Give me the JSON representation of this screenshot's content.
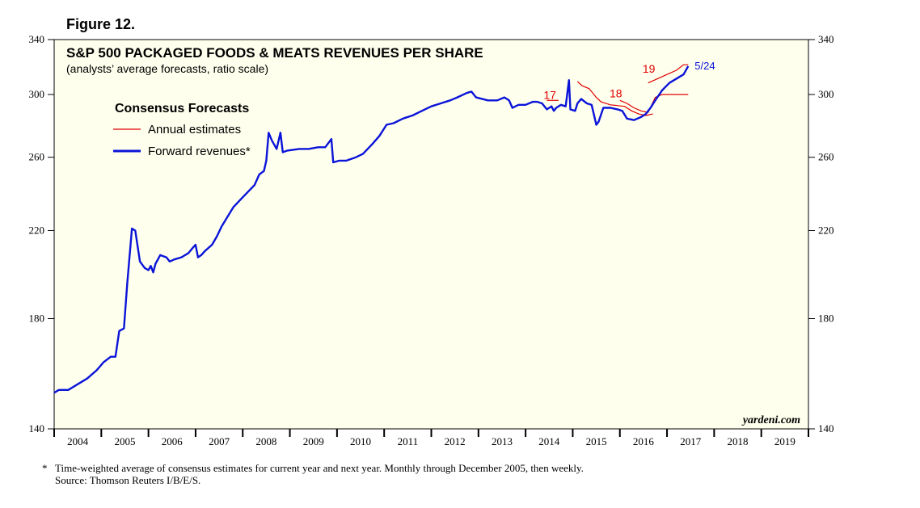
{
  "figure_label": "Figure 12.",
  "footnote": {
    "marker": "*",
    "line1": "Time-weighted average of consensus estimates for current year and next year. Monthly through December 2005, then weekly.",
    "line2": "Source: Thomson Reuters I/B/E/S."
  },
  "chart_data": {
    "type": "line",
    "title": "S&P 500 PACKAGED FOODS & MEATS REVENUES PER SHARE",
    "subtitle": "(analysts’ average forecasts, ratio scale)",
    "legend_title": "Consensus Forecasts",
    "watermark": "yardeni.com",
    "end_label": "5/24",
    "colors": {
      "forward": "#0a14d8",
      "annual": "#e00000",
      "plot_bg": "#ffffee"
    },
    "xlim": [
      2004.0,
      2020.0
    ],
    "ylim": [
      140,
      340
    ],
    "yscale": "log",
    "y_ticks": [
      140,
      180,
      220,
      260,
      300,
      340
    ],
    "x_tick_labels": [
      "2004",
      "2005",
      "2006",
      "2007",
      "2008",
      "2009",
      "2010",
      "2011",
      "2012",
      "2013",
      "2014",
      "2015",
      "2016",
      "2017",
      "2018",
      "2019"
    ],
    "series": [
      {
        "name": "Forward revenues*",
        "color": "#0a14d8",
        "points": [
          [
            2004.0,
            152
          ],
          [
            2004.1,
            153
          ],
          [
            2004.3,
            153
          ],
          [
            2004.5,
            155
          ],
          [
            2004.7,
            157
          ],
          [
            2004.9,
            160
          ],
          [
            2005.05,
            163
          ],
          [
            2005.2,
            165
          ],
          [
            2005.3,
            165
          ],
          [
            2005.38,
            175
          ],
          [
            2005.48,
            176
          ],
          [
            2005.55,
            195
          ],
          [
            2005.65,
            221
          ],
          [
            2005.72,
            220
          ],
          [
            2005.82,
            205
          ],
          [
            2005.92,
            202
          ],
          [
            2006.0,
            201
          ],
          [
            2006.05,
            203
          ],
          [
            2006.1,
            200
          ],
          [
            2006.15,
            204
          ],
          [
            2006.25,
            208
          ],
          [
            2006.38,
            207
          ],
          [
            2006.45,
            205
          ],
          [
            2006.55,
            206
          ],
          [
            2006.7,
            207
          ],
          [
            2006.85,
            209
          ],
          [
            2006.92,
            211
          ],
          [
            2007.0,
            213
          ],
          [
            2007.05,
            207
          ],
          [
            2007.12,
            208
          ],
          [
            2007.2,
            210
          ],
          [
            2007.35,
            213
          ],
          [
            2007.45,
            217
          ],
          [
            2007.55,
            222
          ],
          [
            2007.7,
            228
          ],
          [
            2007.8,
            232
          ],
          [
            2007.95,
            236
          ],
          [
            2008.1,
            240
          ],
          [
            2008.25,
            244
          ],
          [
            2008.35,
            250
          ],
          [
            2008.45,
            252
          ],
          [
            2008.5,
            258
          ],
          [
            2008.55,
            275
          ],
          [
            2008.62,
            270
          ],
          [
            2008.72,
            265
          ],
          [
            2008.8,
            275
          ],
          [
            2008.85,
            263
          ],
          [
            2008.95,
            264
          ],
          [
            2009.2,
            265
          ],
          [
            2009.4,
            265
          ],
          [
            2009.6,
            266
          ],
          [
            2009.75,
            266
          ],
          [
            2009.88,
            271
          ],
          [
            2009.92,
            257
          ],
          [
            2010.05,
            258
          ],
          [
            2010.2,
            258
          ],
          [
            2010.4,
            260
          ],
          [
            2010.55,
            262
          ],
          [
            2010.75,
            268
          ],
          [
            2010.9,
            273
          ],
          [
            2011.05,
            280
          ],
          [
            2011.2,
            281
          ],
          [
            2011.4,
            284
          ],
          [
            2011.6,
            286
          ],
          [
            2011.8,
            289
          ],
          [
            2012.0,
            292
          ],
          [
            2012.2,
            294
          ],
          [
            2012.4,
            296
          ],
          [
            2012.55,
            298
          ],
          [
            2012.75,
            301
          ],
          [
            2012.85,
            302
          ],
          [
            2012.95,
            298
          ],
          [
            2013.2,
            296
          ],
          [
            2013.4,
            296
          ],
          [
            2013.55,
            298
          ],
          [
            2013.65,
            296
          ],
          [
            2013.72,
            291
          ],
          [
            2013.85,
            293
          ],
          [
            2014.0,
            293
          ],
          [
            2014.15,
            295
          ],
          [
            2014.25,
            295
          ],
          [
            2014.35,
            294
          ],
          [
            2014.45,
            290
          ],
          [
            2014.55,
            292
          ],
          [
            2014.6,
            289
          ],
          [
            2014.65,
            291
          ],
          [
            2014.75,
            293
          ],
          [
            2014.85,
            292
          ],
          [
            2014.92,
            310
          ],
          [
            2014.95,
            290
          ],
          [
            2015.05,
            289
          ],
          [
            2015.1,
            294
          ],
          [
            2015.18,
            297
          ],
          [
            2015.3,
            294
          ],
          [
            2015.4,
            293
          ],
          [
            2015.5,
            280
          ],
          [
            2015.55,
            282
          ],
          [
            2015.65,
            291
          ],
          [
            2015.8,
            291
          ],
          [
            2015.95,
            290
          ],
          [
            2016.05,
            289
          ],
          [
            2016.15,
            284
          ],
          [
            2016.3,
            283
          ],
          [
            2016.45,
            285
          ],
          [
            2016.55,
            287
          ],
          [
            2016.65,
            291
          ],
          [
            2016.75,
            296
          ],
          [
            2016.9,
            303
          ],
          [
            2017.05,
            308
          ],
          [
            2017.15,
            310
          ],
          [
            2017.25,
            312
          ],
          [
            2017.35,
            314
          ],
          [
            2017.45,
            320
          ]
        ]
      },
      {
        "name": "Annual estimates",
        "color": "#e00000",
        "labels": [
          "17",
          "18",
          "19"
        ],
        "points": [],
        "curves": [
          {
            "label": "17",
            "points": [
              [
                2014.45,
                296
              ],
              [
                2014.6,
                296
              ],
              [
                2014.7,
                296
              ]
            ]
          },
          {
            "label": "17",
            "points": [
              [
                2015.1,
                309
              ],
              [
                2015.2,
                306
              ],
              [
                2015.35,
                304
              ],
              [
                2015.5,
                298
              ],
              [
                2015.6,
                295
              ],
              [
                2015.8,
                293
              ],
              [
                2016.1,
                292
              ],
              [
                2016.25,
                289
              ],
              [
                2016.4,
                287
              ],
              [
                2016.55,
                286
              ],
              [
                2016.7,
                287
              ]
            ]
          },
          {
            "label": "18",
            "points": [
              [
                2016.0,
                296
              ],
              [
                2016.15,
                294
              ],
              [
                2016.3,
                291
              ],
              [
                2016.45,
                289
              ],
              [
                2016.6,
                288
              ],
              [
                2016.75,
                298
              ],
              [
                2016.9,
                300
              ],
              [
                2017.05,
                300
              ],
              [
                2017.2,
                300
              ],
              [
                2017.35,
                300
              ],
              [
                2017.45,
                300
              ]
            ]
          },
          {
            "label": "19",
            "points": [
              [
                2016.6,
                308
              ],
              [
                2016.8,
                311
              ],
              [
                2017.0,
                314
              ],
              [
                2017.2,
                317
              ],
              [
                2017.35,
                321
              ],
              [
                2017.45,
                321
              ]
            ]
          }
        ]
      }
    ]
  }
}
